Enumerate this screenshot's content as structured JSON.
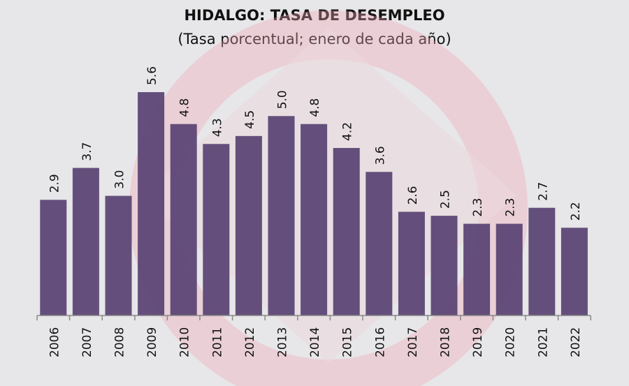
{
  "chart_data": {
    "type": "bar",
    "title": "HIDALGO: TASA DE DESEMPLEO",
    "subtitle": "(Tasa porcentual; enero de cada año)",
    "categories": [
      "2006",
      "2007",
      "2008",
      "2009",
      "2010",
      "2011",
      "2012",
      "2013",
      "2014",
      "2015",
      "2016",
      "2017",
      "2018",
      "2019",
      "2020",
      "2021",
      "2022"
    ],
    "values": [
      2.9,
      3.7,
      3.0,
      5.6,
      4.8,
      4.3,
      4.5,
      5.0,
      4.8,
      4.2,
      3.6,
      2.6,
      2.5,
      2.3,
      2.3,
      2.7,
      2.2
    ],
    "data_labels": [
      "2.9",
      "3.7",
      "3.0",
      "5.6",
      "4.8",
      "4.3",
      "4.5",
      "5.0",
      "4.8",
      "4.2",
      "3.6",
      "2.6",
      "2.5",
      "2.3",
      "2.3",
      "2.7",
      "2.2"
    ],
    "xlabel": "",
    "ylabel": "",
    "ylim": [
      0,
      5.6
    ],
    "grid": false,
    "colors": {
      "bar": "#594373",
      "background": "#e7e6e8",
      "watermark": "#f2b8c4"
    }
  }
}
